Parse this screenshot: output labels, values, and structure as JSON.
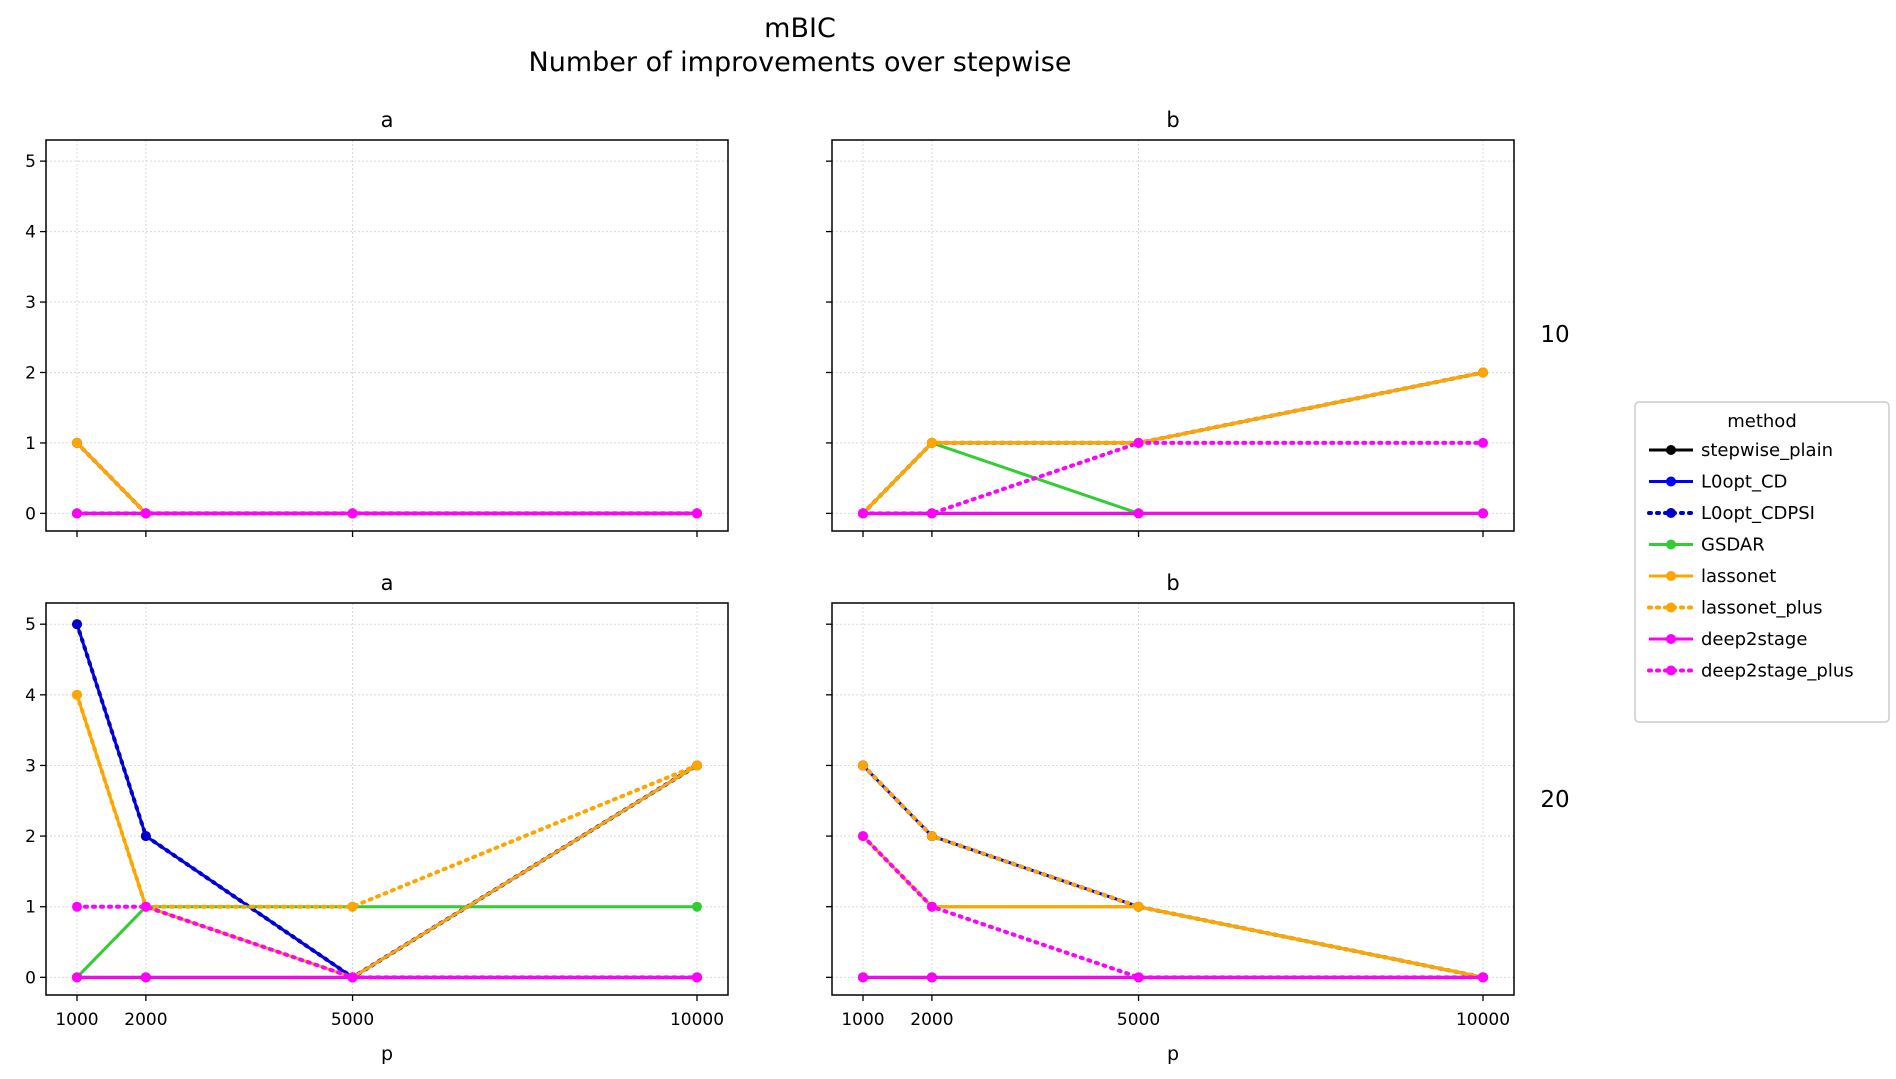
{
  "title": {
    "line1": "mBIC",
    "line2": "Number of improvements over stepwise"
  },
  "legend": {
    "title": "method"
  },
  "row_labels": [
    "10",
    "20"
  ],
  "xlabel": "p",
  "chart_data": {
    "type": "line",
    "x_ticks": [
      1000,
      2000,
      5000,
      10000
    ],
    "y_ticks": [
      0,
      1,
      2,
      3,
      4,
      5
    ],
    "ylim": [
      0,
      5
    ],
    "grid": true,
    "legend_position": "right",
    "series_styles": [
      {
        "name": "stepwise_plain",
        "color": "#000000",
        "dash": "solid"
      },
      {
        "name": "L0opt_CD",
        "color": "#0000ff",
        "dash": "solid"
      },
      {
        "name": "L0opt_CDPSI",
        "color": "#0000cd",
        "dash": "dotted"
      },
      {
        "name": "GSDAR",
        "color": "#32cd32",
        "dash": "solid"
      },
      {
        "name": "lassonet",
        "color": "#ffa500",
        "dash": "solid"
      },
      {
        "name": "lassonet_plus",
        "color": "#ffa500",
        "dash": "dotted"
      },
      {
        "name": "deep2stage",
        "color": "#ff00ff",
        "dash": "solid"
      },
      {
        "name": "deep2stage_plus",
        "color": "#ff00ff",
        "dash": "dotted"
      }
    ],
    "panels": [
      {
        "title": "a",
        "row_label": "10",
        "x": [
          1000,
          2000,
          5000,
          10000
        ],
        "series": [
          {
            "name": "stepwise_plain",
            "values": [
              0,
              0,
              0,
              0
            ]
          },
          {
            "name": "L0opt_CD",
            "values": [
              1,
              0,
              0,
              0
            ]
          },
          {
            "name": "L0opt_CDPSI",
            "values": [
              1,
              0,
              0,
              0
            ]
          },
          {
            "name": "GSDAR",
            "values": [
              0,
              0,
              0,
              0
            ]
          },
          {
            "name": "lassonet",
            "values": [
              1,
              0,
              0,
              0
            ]
          },
          {
            "name": "lassonet_plus",
            "values": [
              1,
              0,
              0,
              0
            ]
          },
          {
            "name": "deep2stage",
            "values": [
              0,
              0,
              0,
              0
            ]
          },
          {
            "name": "deep2stage_plus",
            "values": [
              0,
              0,
              0,
              0
            ]
          }
        ]
      },
      {
        "title": "b",
        "row_label": "10",
        "x": [
          1000,
          2000,
          5000,
          10000
        ],
        "series": [
          {
            "name": "stepwise_plain",
            "values": [
              0,
              0,
              0,
              0
            ]
          },
          {
            "name": "L0opt_CD",
            "values": [
              0,
              1,
              1,
              2
            ]
          },
          {
            "name": "L0opt_CDPSI",
            "values": [
              0,
              1,
              1,
              2
            ]
          },
          {
            "name": "GSDAR",
            "values": [
              0,
              1,
              0,
              0
            ]
          },
          {
            "name": "lassonet",
            "values": [
              0,
              1,
              1,
              2
            ]
          },
          {
            "name": "lassonet_plus",
            "values": [
              0,
              1,
              1,
              2
            ]
          },
          {
            "name": "deep2stage",
            "values": [
              0,
              0,
              0,
              0
            ]
          },
          {
            "name": "deep2stage_plus",
            "values": [
              0,
              0,
              1,
              1
            ]
          }
        ]
      },
      {
        "title": "a",
        "row_label": "20",
        "x": [
          1000,
          2000,
          5000,
          10000
        ],
        "series": [
          {
            "name": "stepwise_plain",
            "values": [
              0,
              0,
              0,
              0
            ]
          },
          {
            "name": "L0opt_CD",
            "values": [
              5,
              2,
              0,
              3
            ]
          },
          {
            "name": "L0opt_CDPSI",
            "values": [
              5,
              2,
              0,
              3
            ]
          },
          {
            "name": "GSDAR",
            "values": [
              0,
              1,
              1,
              1
            ]
          },
          {
            "name": "lassonet",
            "values": [
              4,
              1,
              0,
              3
            ]
          },
          {
            "name": "lassonet_plus",
            "values": [
              4,
              1,
              1,
              3
            ]
          },
          {
            "name": "deep2stage",
            "values": [
              0,
              0,
              0,
              0
            ]
          },
          {
            "name": "deep2stage_plus",
            "values": [
              1,
              1,
              0,
              0
            ]
          }
        ]
      },
      {
        "title": "b",
        "row_label": "20",
        "x": [
          1000,
          2000,
          5000,
          10000
        ],
        "series": [
          {
            "name": "stepwise_plain",
            "values": [
              0,
              0,
              0,
              0
            ]
          },
          {
            "name": "L0opt_CD",
            "values": [
              3,
              2,
              1,
              0
            ]
          },
          {
            "name": "L0opt_CDPSI",
            "values": [
              3,
              2,
              1,
              0
            ]
          },
          {
            "name": "GSDAR",
            "values": [
              2,
              1,
              1,
              0
            ]
          },
          {
            "name": "lassonet",
            "values": [
              2,
              1,
              1,
              0
            ]
          },
          {
            "name": "lassonet_plus",
            "values": [
              3,
              2,
              1,
              0
            ]
          },
          {
            "name": "deep2stage",
            "values": [
              0,
              0,
              0,
              0
            ]
          },
          {
            "name": "deep2stage_plus",
            "values": [
              2,
              1,
              0,
              0
            ]
          }
        ]
      }
    ]
  }
}
